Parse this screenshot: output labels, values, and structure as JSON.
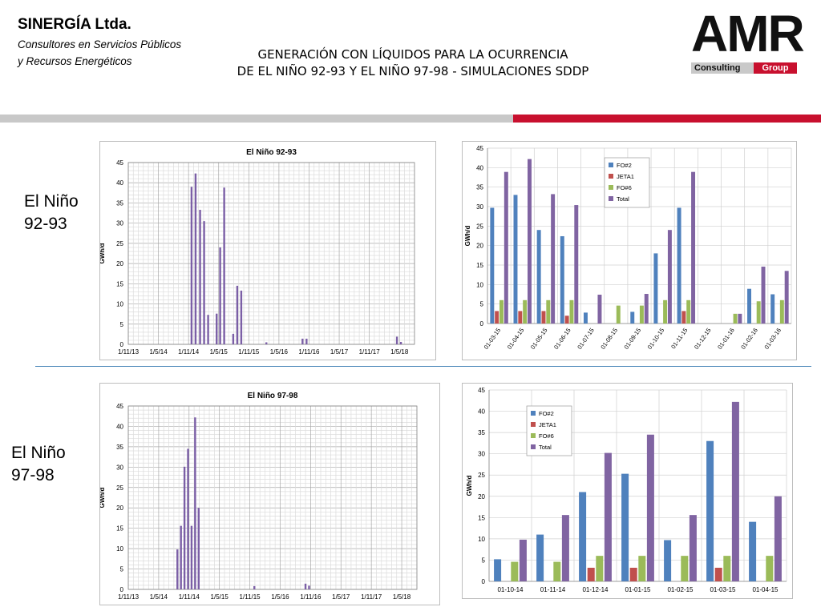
{
  "header": {
    "company_name": "SINERGÍA Ltda.",
    "tagline_line1": "Consultores en Servicios Públicos",
    "tagline_line2": "y Recursos Energéticos",
    "title_line1": "GENERACIÓN CON LÍQUIDOS PARA LA OCURRENCIA",
    "title_line2": "DE EL NIÑO 92-93 Y EL NIÑO 97-98 - SIMULACIONES SDDP",
    "logo_text": "AMR",
    "logo_consulting": "Consulting",
    "logo_group": "Group"
  },
  "sections": {
    "nino_92_line1": "El Niño",
    "nino_92_line2": "92-93",
    "nino_97_line1": "El Niño",
    "nino_97_line2": "97-98"
  },
  "colors": {
    "band_gray": "#c8c8c8",
    "band_red": "#c8102e",
    "fo2": "#4f81bd",
    "jeta1": "#c0504d",
    "fo6": "#9bbb59",
    "total": "#8064a2"
  },
  "chart_data": [
    {
      "type": "bar",
      "title": "El Niño 92-93",
      "ylabel": "GWh/d",
      "xlabel": "",
      "ylim": [
        0,
        45
      ],
      "yticks": [
        0,
        5,
        10,
        15,
        20,
        25,
        30,
        35,
        40,
        45
      ],
      "xticks": [
        "1/11/13",
        "1/5/14",
        "1/11/14",
        "1/5/15",
        "1/11/15",
        "1/5/16",
        "1/11/16",
        "1/5/17",
        "1/11/17",
        "1/5/18"
      ],
      "x_range_months": [
        0,
        57
      ],
      "grid": true,
      "bars": [
        {
          "month": 12.6,
          "value": 39
        },
        {
          "month": 13.4,
          "value": 42.3
        },
        {
          "month": 14.3,
          "value": 33.3
        },
        {
          "month": 15.1,
          "value": 30.5
        },
        {
          "month": 15.9,
          "value": 7.3
        },
        {
          "month": 17.6,
          "value": 7.6
        },
        {
          "month": 18.3,
          "value": 24
        },
        {
          "month": 19.1,
          "value": 38.8
        },
        {
          "month": 20.9,
          "value": 2.6
        },
        {
          "month": 21.7,
          "value": 14.5
        },
        {
          "month": 22.5,
          "value": 13.3
        },
        {
          "month": 27.5,
          "value": 0.5
        },
        {
          "month": 34.7,
          "value": 1.4
        },
        {
          "month": 35.5,
          "value": 1.4
        },
        {
          "month": 53.5,
          "value": 1.9
        },
        {
          "month": 54.3,
          "value": 0.6
        }
      ]
    },
    {
      "type": "bar",
      "title": "",
      "ylabel": "GWh/d",
      "xlabel": "",
      "ylim": [
        0,
        45
      ],
      "yticks": [
        0,
        5,
        10,
        15,
        20,
        25,
        30,
        35,
        40,
        45
      ],
      "legend_position": "top-left",
      "grid": true,
      "categories": [
        "01-03-15",
        "01-04-15",
        "01-05-15",
        "01-06-15",
        "01-07-15",
        "01-08-15",
        "01-09-15",
        "01-10-15",
        "01-11-15",
        "01-12-15",
        "01-01-16",
        "01-02-16",
        "01-03-16"
      ],
      "series": [
        {
          "name": "FO#2",
          "values": [
            29.7,
            33,
            24,
            22.4,
            2.8,
            0,
            3,
            18,
            29.7,
            0,
            0,
            8.9,
            7.5
          ]
        },
        {
          "name": "JETA1",
          "values": [
            3.2,
            3.2,
            3.2,
            2,
            0,
            0,
            0,
            0,
            3.2,
            0,
            0,
            0,
            0
          ]
        },
        {
          "name": "FO#6",
          "values": [
            6,
            6,
            6,
            6,
            0,
            4.6,
            4.6,
            6,
            6,
            0,
            2.5,
            5.7,
            6
          ]
        },
        {
          "name": "Total",
          "values": [
            38.9,
            42.2,
            33.2,
            30.4,
            7.4,
            0,
            7.6,
            24,
            38.9,
            0,
            2.5,
            14.6,
            13.5
          ]
        }
      ]
    },
    {
      "type": "bar",
      "title": "El Niño 97-98",
      "ylabel": "GWh/d",
      "xlabel": "",
      "ylim": [
        0,
        45
      ],
      "yticks": [
        0,
        5,
        10,
        15,
        20,
        25,
        30,
        35,
        40,
        45
      ],
      "xticks": [
        "1/11/13",
        "1/5/14",
        "1/11/14",
        "1/5/15",
        "1/11/15",
        "1/5/16",
        "1/11/16",
        "1/5/17",
        "1/11/17",
        "1/5/18"
      ],
      "x_range_months": [
        0,
        57
      ],
      "grid": true,
      "bars": [
        {
          "month": 9.7,
          "value": 9.8
        },
        {
          "month": 10.4,
          "value": 15.6
        },
        {
          "month": 11.1,
          "value": 30.1
        },
        {
          "month": 11.8,
          "value": 34.5
        },
        {
          "month": 12.5,
          "value": 15.6
        },
        {
          "month": 13.2,
          "value": 42.2
        },
        {
          "month": 13.9,
          "value": 20
        },
        {
          "month": 24.9,
          "value": 0.8
        },
        {
          "month": 35,
          "value": 1.4
        },
        {
          "month": 35.7,
          "value": 0.9
        }
      ]
    },
    {
      "type": "bar",
      "title": "",
      "ylabel": "GWh/d",
      "xlabel": "",
      "ylim": [
        0,
        45
      ],
      "yticks": [
        0,
        5,
        10,
        15,
        20,
        25,
        30,
        35,
        40,
        45
      ],
      "legend_position": "top-left",
      "grid": true,
      "categories": [
        "01-10-14",
        "01-11-14",
        "01-12-14",
        "01-01-15",
        "01-02-15",
        "01-03-15",
        "01-04-15"
      ],
      "series": [
        {
          "name": "FO#2",
          "values": [
            5.2,
            11,
            21,
            25.3,
            9.7,
            33,
            14
          ]
        },
        {
          "name": "JETA1",
          "values": [
            0,
            0,
            3.2,
            3.2,
            0,
            3.2,
            0
          ]
        },
        {
          "name": "FO#6",
          "values": [
            4.6,
            4.6,
            6,
            6,
            6,
            6,
            6
          ]
        },
        {
          "name": "Total",
          "values": [
            9.8,
            15.6,
            30.2,
            34.5,
            15.6,
            42.2,
            20
          ]
        }
      ]
    }
  ]
}
